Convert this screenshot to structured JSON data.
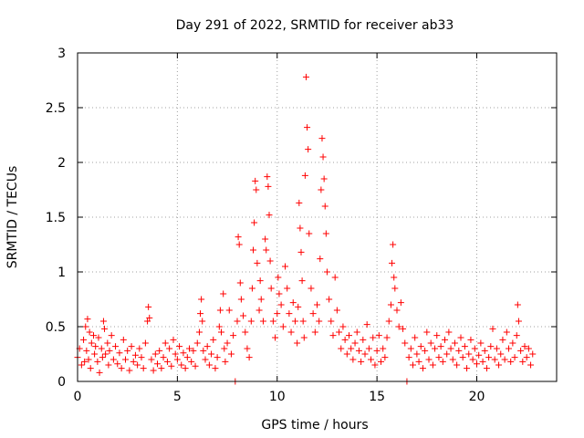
{
  "chart_data": {
    "type": "scatter",
    "title": "Day 291 of 2022, SRMTID for receiver ab33",
    "xlabel": "GPS time / hours",
    "ylabel": "SRMTID / TECUs",
    "xlim": [
      0,
      24
    ],
    "ylim": [
      0,
      3
    ],
    "xticks": [
      0,
      5,
      10,
      15,
      20
    ],
    "xtick_labels": [
      "0",
      "5",
      "10",
      "15",
      "20"
    ],
    "yticks": [
      0,
      0.5,
      1,
      1.5,
      2,
      2.5,
      3
    ],
    "ytick_labels": [
      "0",
      "0.5",
      "1",
      "1.5",
      "2",
      "2.5",
      "3"
    ],
    "grid": true,
    "marker": "+",
    "color": "#ff0000",
    "series": [
      {
        "name": "SRMTID",
        "points": [
          [
            0.0,
            0.22
          ],
          [
            0.1,
            0.3
          ],
          [
            0.2,
            0.15
          ],
          [
            0.3,
            0.38
          ],
          [
            0.35,
            0.18
          ],
          [
            0.4,
            0.5
          ],
          [
            0.45,
            0.28
          ],
          [
            0.5,
            0.57
          ],
          [
            0.55,
            0.2
          ],
          [
            0.6,
            0.45
          ],
          [
            0.65,
            0.12
          ],
          [
            0.7,
            0.35
          ],
          [
            0.8,
            0.42
          ],
          [
            0.85,
            0.25
          ],
          [
            0.9,
            0.32
          ],
          [
            1.0,
            0.18
          ],
          [
            1.05,
            0.4
          ],
          [
            1.1,
            0.08
          ],
          [
            1.2,
            0.3
          ],
          [
            1.25,
            0.22
          ],
          [
            1.3,
            0.55
          ],
          [
            1.35,
            0.48
          ],
          [
            1.4,
            0.25
          ],
          [
            1.5,
            0.35
          ],
          [
            1.55,
            0.15
          ],
          [
            1.6,
            0.28
          ],
          [
            1.7,
            0.42
          ],
          [
            1.8,
            0.2
          ],
          [
            1.9,
            0.32
          ],
          [
            2.0,
            0.16
          ],
          [
            2.1,
            0.26
          ],
          [
            2.2,
            0.12
          ],
          [
            2.3,
            0.38
          ],
          [
            2.4,
            0.2
          ],
          [
            2.5,
            0.28
          ],
          [
            2.6,
            0.1
          ],
          [
            2.7,
            0.32
          ],
          [
            2.8,
            0.18
          ],
          [
            2.9,
            0.24
          ],
          [
            3.0,
            0.15
          ],
          [
            3.1,
            0.3
          ],
          [
            3.2,
            0.22
          ],
          [
            3.3,
            0.12
          ],
          [
            3.4,
            0.35
          ],
          [
            3.5,
            0.55
          ],
          [
            3.55,
            0.68
          ],
          [
            3.6,
            0.58
          ],
          [
            3.7,
            0.2
          ],
          [
            3.8,
            0.1
          ],
          [
            3.9,
            0.25
          ],
          [
            4.0,
            0.16
          ],
          [
            4.1,
            0.28
          ],
          [
            4.2,
            0.12
          ],
          [
            4.3,
            0.22
          ],
          [
            4.4,
            0.35
          ],
          [
            4.5,
            0.18
          ],
          [
            4.6,
            0.3
          ],
          [
            4.7,
            0.14
          ],
          [
            4.8,
            0.38
          ],
          [
            4.9,
            0.25
          ],
          [
            5.0,
            0.2
          ],
          [
            5.1,
            0.32
          ],
          [
            5.2,
            0.15
          ],
          [
            5.3,
            0.26
          ],
          [
            5.4,
            0.12
          ],
          [
            5.5,
            0.22
          ],
          [
            5.6,
            0.3
          ],
          [
            5.7,
            0.18
          ],
          [
            5.8,
            0.28
          ],
          [
            5.9,
            0.14
          ],
          [
            6.0,
            0.35
          ],
          [
            6.1,
            0.45
          ],
          [
            6.15,
            0.62
          ],
          [
            6.2,
            0.75
          ],
          [
            6.25,
            0.55
          ],
          [
            6.3,
            0.28
          ],
          [
            6.4,
            0.2
          ],
          [
            6.5,
            0.32
          ],
          [
            6.6,
            0.15
          ],
          [
            6.7,
            0.25
          ],
          [
            6.8,
            0.38
          ],
          [
            6.9,
            0.12
          ],
          [
            7.0,
            0.22
          ],
          [
            7.1,
            0.5
          ],
          [
            7.15,
            0.65
          ],
          [
            7.2,
            0.45
          ],
          [
            7.3,
            0.8
          ],
          [
            7.35,
            0.3
          ],
          [
            7.4,
            0.18
          ],
          [
            7.5,
            0.35
          ],
          [
            7.6,
            0.65
          ],
          [
            7.7,
            0.25
          ],
          [
            7.8,
            0.42
          ],
          [
            7.9,
            0.0
          ],
          [
            8.0,
            0.55
          ],
          [
            8.05,
            1.32
          ],
          [
            8.1,
            1.25
          ],
          [
            8.15,
            0.9
          ],
          [
            8.2,
            0.75
          ],
          [
            8.3,
            0.6
          ],
          [
            8.4,
            0.45
          ],
          [
            8.5,
            0.3
          ],
          [
            8.6,
            0.22
          ],
          [
            8.7,
            0.55
          ],
          [
            8.75,
            0.85
          ],
          [
            8.8,
            1.2
          ],
          [
            8.85,
            1.45
          ],
          [
            8.9,
            1.83
          ],
          [
            8.95,
            1.75
          ],
          [
            9.0,
            1.08
          ],
          [
            9.1,
            0.65
          ],
          [
            9.15,
            0.92
          ],
          [
            9.2,
            0.75
          ],
          [
            9.3,
            0.55
          ],
          [
            9.4,
            1.3
          ],
          [
            9.45,
            1.2
          ],
          [
            9.5,
            1.87
          ],
          [
            9.55,
            1.78
          ],
          [
            9.6,
            1.52
          ],
          [
            9.65,
            1.1
          ],
          [
            9.7,
            0.85
          ],
          [
            9.8,
            0.55
          ],
          [
            9.9,
            0.4
          ],
          [
            10.0,
            0.62
          ],
          [
            10.05,
            0.95
          ],
          [
            10.1,
            0.8
          ],
          [
            10.2,
            0.7
          ],
          [
            10.3,
            0.5
          ],
          [
            10.4,
            1.05
          ],
          [
            10.5,
            0.85
          ],
          [
            10.6,
            0.62
          ],
          [
            10.7,
            0.45
          ],
          [
            10.8,
            0.72
          ],
          [
            10.9,
            0.55
          ],
          [
            11.0,
            0.35
          ],
          [
            11.05,
            0.68
          ],
          [
            11.1,
            1.63
          ],
          [
            11.15,
            1.4
          ],
          [
            11.2,
            1.18
          ],
          [
            11.25,
            0.92
          ],
          [
            11.3,
            0.55
          ],
          [
            11.35,
            0.4
          ],
          [
            11.4,
            1.88
          ],
          [
            11.45,
            2.78
          ],
          [
            11.5,
            2.32
          ],
          [
            11.55,
            2.12
          ],
          [
            11.6,
            1.35
          ],
          [
            11.7,
            0.85
          ],
          [
            11.8,
            0.62
          ],
          [
            11.9,
            0.45
          ],
          [
            12.0,
            0.7
          ],
          [
            12.1,
            0.55
          ],
          [
            12.15,
            1.12
          ],
          [
            12.2,
            1.75
          ],
          [
            12.25,
            2.22
          ],
          [
            12.3,
            2.05
          ],
          [
            12.35,
            1.85
          ],
          [
            12.4,
            1.6
          ],
          [
            12.45,
            1.35
          ],
          [
            12.5,
            1.0
          ],
          [
            12.6,
            0.75
          ],
          [
            12.7,
            0.55
          ],
          [
            12.8,
            0.42
          ],
          [
            12.9,
            0.95
          ],
          [
            13.0,
            0.65
          ],
          [
            13.1,
            0.45
          ],
          [
            13.2,
            0.3
          ],
          [
            13.3,
            0.5
          ],
          [
            13.4,
            0.38
          ],
          [
            13.5,
            0.25
          ],
          [
            13.6,
            0.42
          ],
          [
            13.7,
            0.3
          ],
          [
            13.8,
            0.2
          ],
          [
            13.9,
            0.35
          ],
          [
            14.0,
            0.45
          ],
          [
            14.1,
            0.28
          ],
          [
            14.2,
            0.18
          ],
          [
            14.3,
            0.38
          ],
          [
            14.4,
            0.25
          ],
          [
            14.5,
            0.52
          ],
          [
            14.6,
            0.3
          ],
          [
            14.7,
            0.2
          ],
          [
            14.8,
            0.4
          ],
          [
            14.9,
            0.15
          ],
          [
            15.0,
            0.28
          ],
          [
            15.1,
            0.42
          ],
          [
            15.2,
            0.18
          ],
          [
            15.3,
            0.3
          ],
          [
            15.4,
            0.22
          ],
          [
            15.5,
            0.4
          ],
          [
            15.6,
            0.55
          ],
          [
            15.7,
            0.7
          ],
          [
            15.75,
            1.08
          ],
          [
            15.8,
            1.25
          ],
          [
            15.85,
            0.95
          ],
          [
            15.9,
            0.85
          ],
          [
            16.0,
            0.65
          ],
          [
            16.1,
            0.5
          ],
          [
            16.2,
            0.72
          ],
          [
            16.3,
            0.48
          ],
          [
            16.4,
            0.35
          ],
          [
            16.5,
            0.0
          ],
          [
            16.6,
            0.22
          ],
          [
            16.7,
            0.3
          ],
          [
            16.8,
            0.15
          ],
          [
            16.9,
            0.4
          ],
          [
            17.0,
            0.25
          ],
          [
            17.1,
            0.18
          ],
          [
            17.2,
            0.32
          ],
          [
            17.3,
            0.12
          ],
          [
            17.4,
            0.28
          ],
          [
            17.5,
            0.45
          ],
          [
            17.6,
            0.2
          ],
          [
            17.7,
            0.35
          ],
          [
            17.8,
            0.15
          ],
          [
            17.9,
            0.3
          ],
          [
            18.0,
            0.42
          ],
          [
            18.1,
            0.22
          ],
          [
            18.2,
            0.32
          ],
          [
            18.3,
            0.18
          ],
          [
            18.4,
            0.38
          ],
          [
            18.5,
            0.25
          ],
          [
            18.6,
            0.45
          ],
          [
            18.7,
            0.3
          ],
          [
            18.8,
            0.2
          ],
          [
            18.9,
            0.35
          ],
          [
            19.0,
            0.15
          ],
          [
            19.1,
            0.28
          ],
          [
            19.2,
            0.4
          ],
          [
            19.3,
            0.22
          ],
          [
            19.4,
            0.32
          ],
          [
            19.5,
            0.12
          ],
          [
            19.6,
            0.25
          ],
          [
            19.7,
            0.38
          ],
          [
            19.8,
            0.2
          ],
          [
            19.9,
            0.3
          ],
          [
            20.0,
            0.16
          ],
          [
            20.1,
            0.24
          ],
          [
            20.2,
            0.35
          ],
          [
            20.3,
            0.18
          ],
          [
            20.4,
            0.28
          ],
          [
            20.5,
            0.12
          ],
          [
            20.6,
            0.22
          ],
          [
            20.7,
            0.32
          ],
          [
            20.8,
            0.48
          ],
          [
            20.9,
            0.2
          ],
          [
            21.0,
            0.3
          ],
          [
            21.1,
            0.15
          ],
          [
            21.2,
            0.25
          ],
          [
            21.3,
            0.38
          ],
          [
            21.4,
            0.2
          ],
          [
            21.5,
            0.45
          ],
          [
            21.6,
            0.3
          ],
          [
            21.7,
            0.18
          ],
          [
            21.8,
            0.35
          ],
          [
            21.9,
            0.22
          ],
          [
            22.0,
            0.42
          ],
          [
            22.05,
            0.7
          ],
          [
            22.1,
            0.55
          ],
          [
            22.2,
            0.28
          ],
          [
            22.3,
            0.18
          ],
          [
            22.4,
            0.32
          ],
          [
            22.5,
            0.22
          ],
          [
            22.6,
            0.3
          ],
          [
            22.7,
            0.15
          ],
          [
            22.8,
            0.25
          ]
        ]
      }
    ]
  }
}
